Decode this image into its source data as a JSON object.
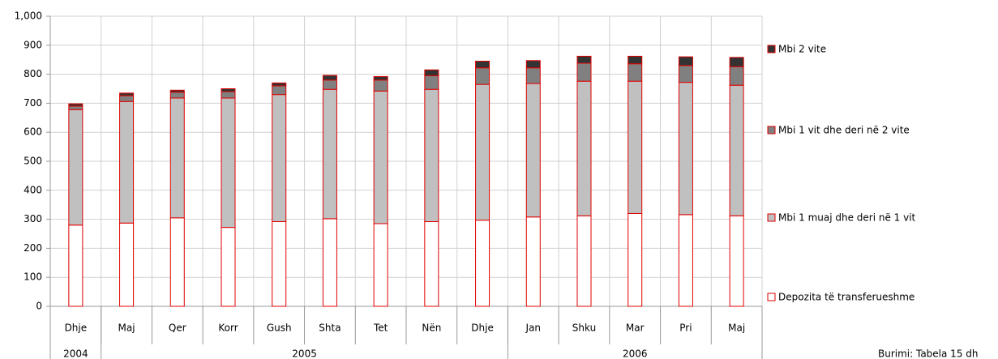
{
  "chart_data": {
    "type": "stacked_bar",
    "categories": [
      "Dhje",
      "Maj",
      "Qer",
      "Korr",
      "Gush",
      "Shta",
      "Tet",
      "Nën",
      "Dhje",
      "Jan",
      "Shku",
      "Mar",
      "Pri",
      "Maj"
    ],
    "year_groups": [
      {
        "label": "2004",
        "count": 1
      },
      {
        "label": "2005",
        "count": 8
      },
      {
        "label": "2006",
        "count": 5
      }
    ],
    "series": [
      {
        "name": "Depozita të transferueshme",
        "color": "#ffffff",
        "values": [
          280,
          287,
          305,
          272,
          292,
          302,
          285,
          292,
          297,
          308,
          312,
          320,
          316,
          312
        ]
      },
      {
        "name": "Mbi 1 muaj dhe deri në 1 vit",
        "color": "#c0c0c0",
        "values": [
          398,
          419,
          413,
          446,
          438,
          446,
          457,
          456,
          468,
          460,
          464,
          456,
          456,
          450
        ]
      },
      {
        "name": "Mbi 1 vit dhe deri në 2 vite",
        "color": "#808080",
        "values": [
          12,
          20,
          20,
          22,
          30,
          32,
          38,
          47,
          57,
          54,
          62,
          60,
          58,
          64
        ]
      },
      {
        "name": "Mbi 2 vite",
        "color": "#333333",
        "values": [
          8,
          9,
          7,
          10,
          10,
          16,
          12,
          20,
          23,
          25,
          24,
          26,
          30,
          32
        ]
      }
    ],
    "bar_edge_color": "#e00000",
    "ylim": [
      0,
      1000
    ],
    "yticks": [
      0,
      100,
      200,
      300,
      400,
      500,
      600,
      700,
      800,
      900,
      {
        "value": 1000,
        "label": "1,000"
      }
    ],
    "grid": true,
    "source": "Burimi: Tabela 15 dh"
  }
}
